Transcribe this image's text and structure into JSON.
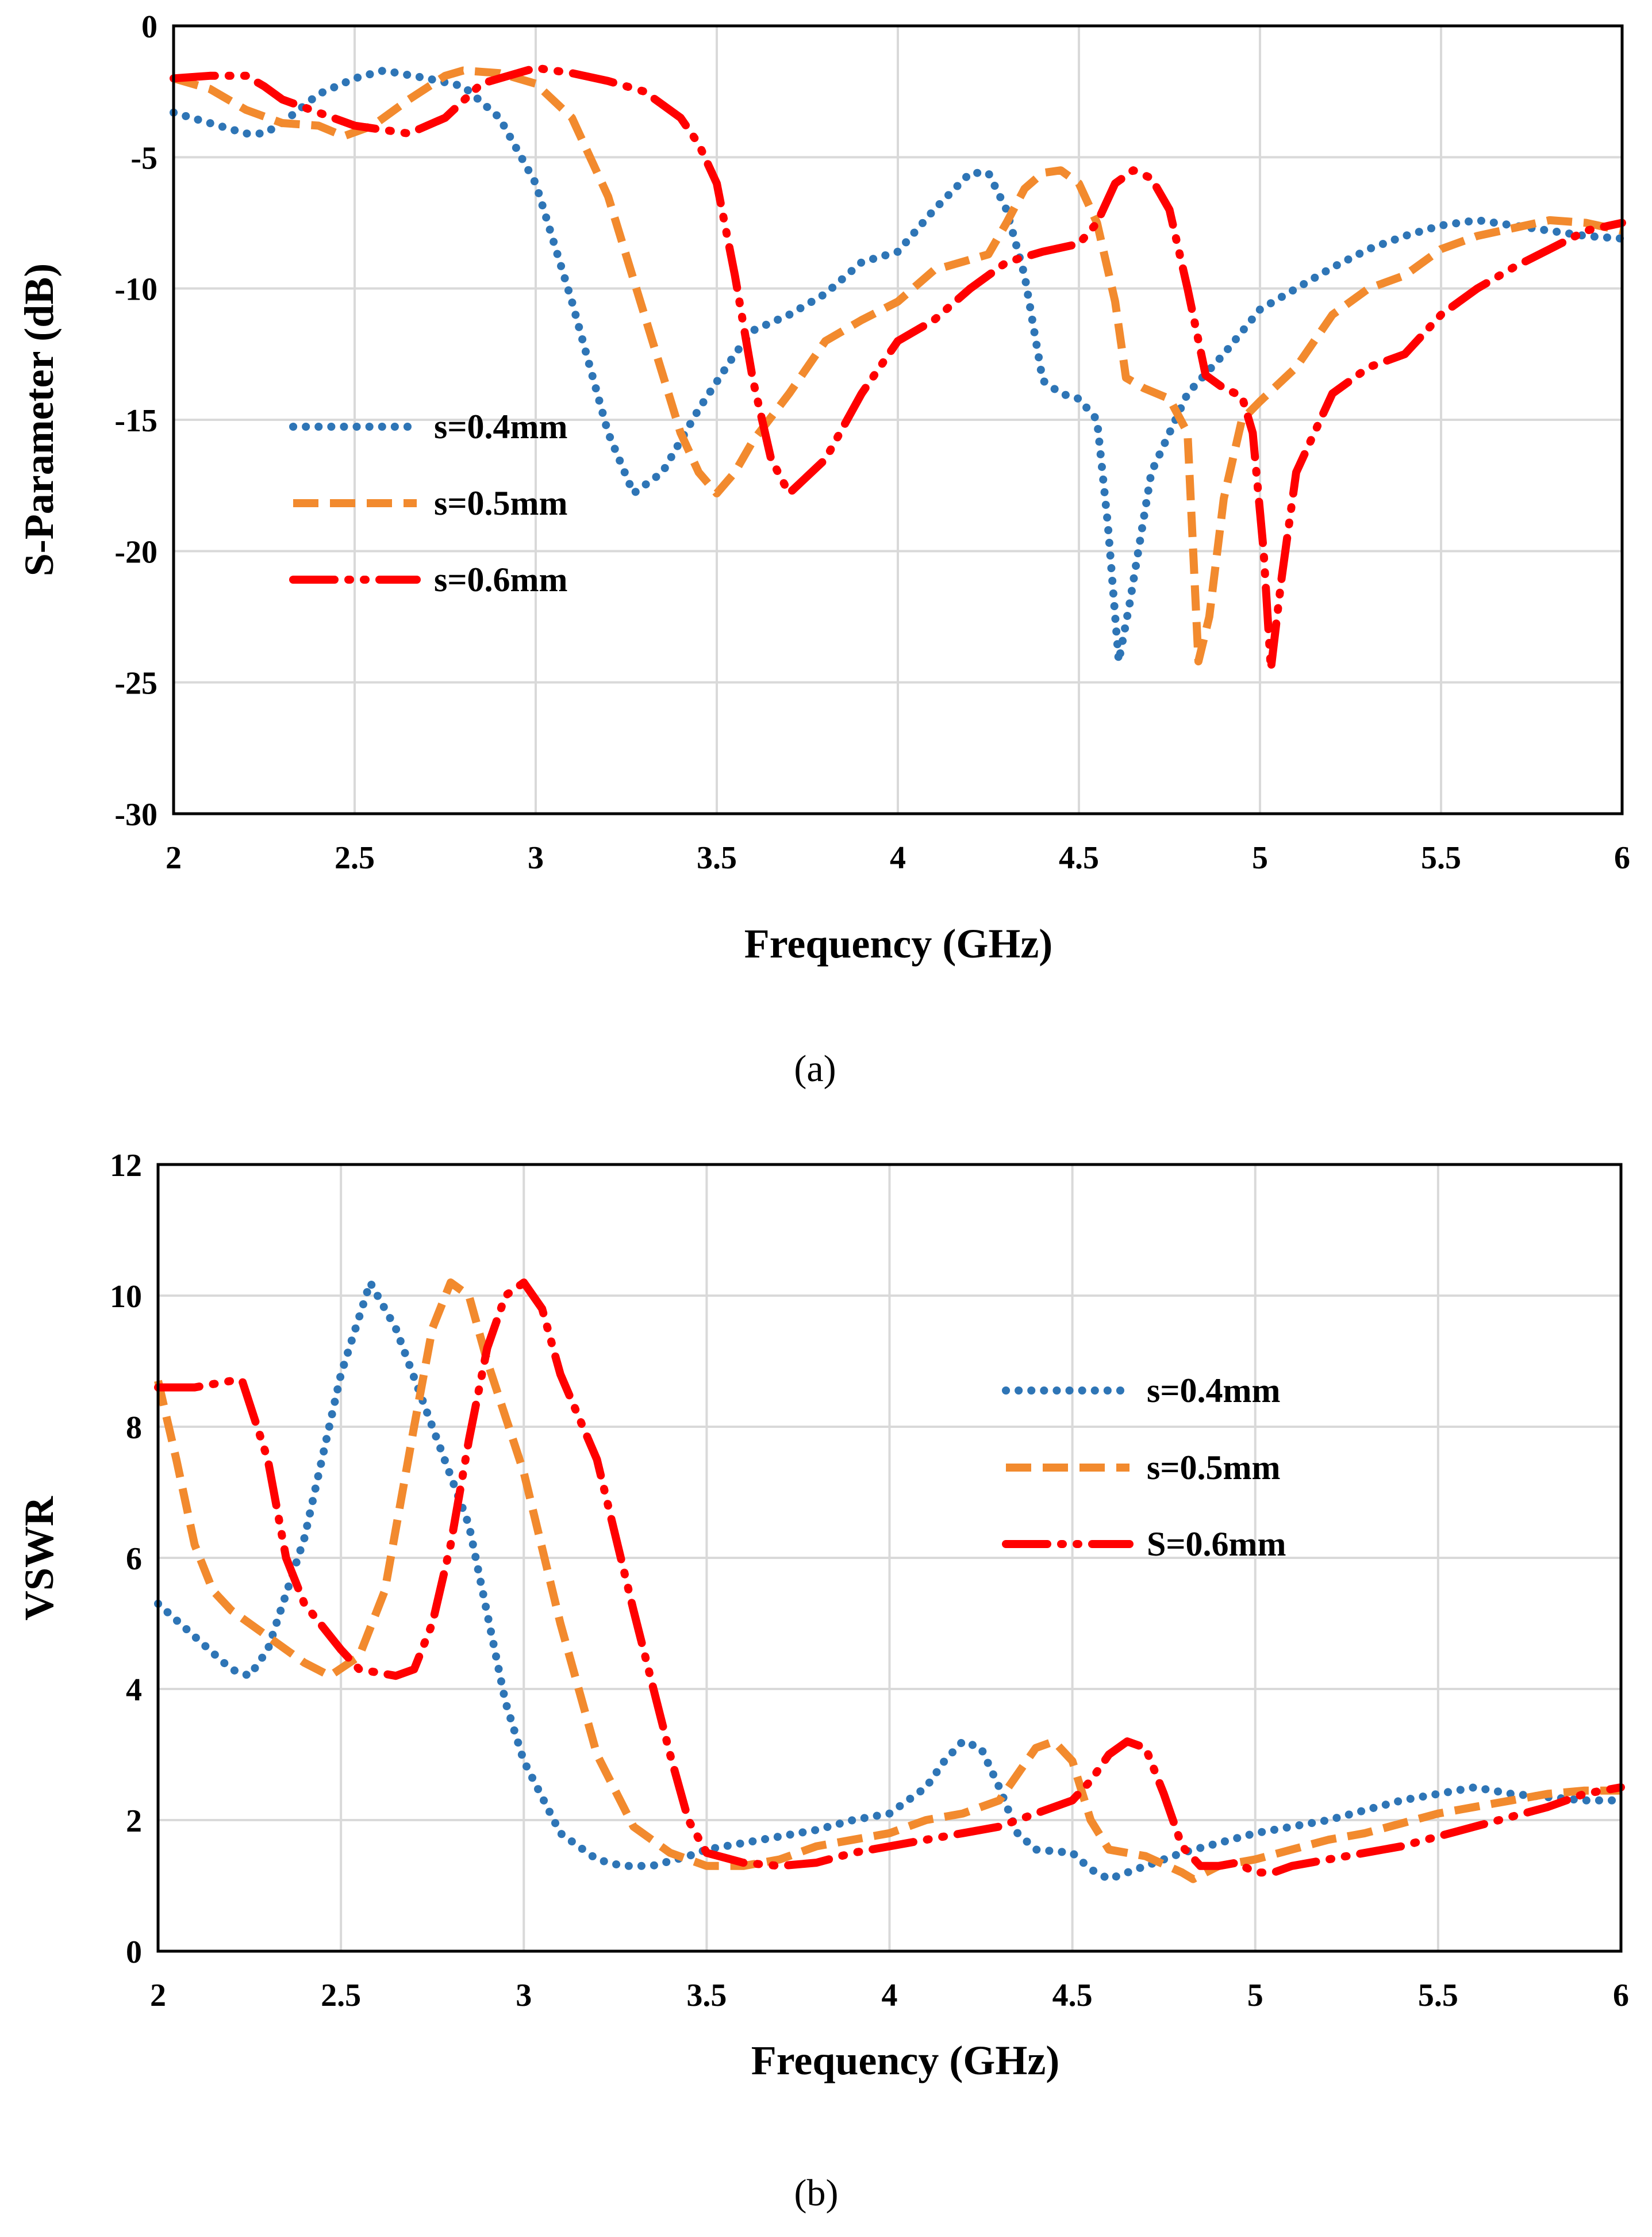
{
  "chart_data": [
    {
      "id": "a",
      "type": "line",
      "caption": "(a)",
      "xlabel": "Frequency (GHz)",
      "ylabel": "S-Parameter (dB)",
      "xlim": [
        2,
        6
      ],
      "ylim": [
        -30,
        0
      ],
      "xticks": [
        "2",
        "2.5",
        "3",
        "3.5",
        "4",
        "4.5",
        "5",
        "5.5",
        "6"
      ],
      "yticks": [
        "0",
        "-5",
        "-10",
        "-15",
        "-20",
        "-25",
        "-30"
      ],
      "grid": true,
      "legend_position": "center-left",
      "series": [
        {
          "name": "s=0.4mm",
          "color": "#2e75b6",
          "dash": "dotted",
          "x": [
            2.0,
            2.1,
            2.2,
            2.25,
            2.3,
            2.4,
            2.5,
            2.58,
            2.7,
            2.8,
            2.9,
            3.0,
            3.1,
            3.2,
            3.27,
            3.35,
            3.45,
            3.55,
            3.6,
            3.7,
            3.8,
            3.9,
            4.0,
            4.1,
            4.2,
            4.25,
            4.3,
            4.35,
            4.4,
            4.45,
            4.5,
            4.55,
            4.58,
            4.61,
            4.64,
            4.7,
            4.8,
            4.9,
            5.0,
            5.1,
            5.2,
            5.3,
            5.4,
            5.5,
            5.6,
            5.7,
            5.8,
            5.9,
            6.0
          ],
          "y": [
            -3.3,
            -3.7,
            -4.1,
            -4.1,
            -3.7,
            -2.6,
            -2.0,
            -1.7,
            -2.0,
            -2.3,
            -3.5,
            -6.0,
            -10.5,
            -15.5,
            -17.8,
            -17.0,
            -14.6,
            -12.5,
            -11.6,
            -11.0,
            -10.2,
            -9.0,
            -8.6,
            -7.0,
            -5.6,
            -5.6,
            -7.0,
            -9.5,
            -13.5,
            -14.0,
            -14.2,
            -15.0,
            -19.0,
            -24.2,
            -22.0,
            -17.0,
            -14.0,
            -12.5,
            -10.8,
            -10.0,
            -9.2,
            -8.5,
            -8.0,
            -7.6,
            -7.4,
            -7.6,
            -7.8,
            -8.0,
            -8.1
          ]
        },
        {
          "name": "s=0.5mm",
          "color": "#f28a2e",
          "dash": "dashed",
          "x": [
            2.0,
            2.1,
            2.2,
            2.3,
            2.4,
            2.47,
            2.55,
            2.65,
            2.75,
            2.8,
            2.9,
            3.0,
            3.1,
            3.2,
            3.3,
            3.4,
            3.45,
            3.5,
            3.55,
            3.6,
            3.7,
            3.8,
            3.9,
            4.0,
            4.1,
            4.2,
            4.25,
            4.3,
            4.35,
            4.4,
            4.45,
            4.5,
            4.55,
            4.6,
            4.63,
            4.68,
            4.75,
            4.8,
            4.83,
            4.86,
            4.9,
            4.95,
            5.0,
            5.1,
            5.2,
            5.3,
            5.4,
            5.5,
            5.6,
            5.7,
            5.8,
            5.9,
            6.0
          ],
          "y": [
            -2.0,
            -2.4,
            -3.2,
            -3.7,
            -3.8,
            -4.2,
            -3.8,
            -2.8,
            -1.9,
            -1.7,
            -1.8,
            -2.2,
            -3.5,
            -6.5,
            -11.0,
            -15.5,
            -17.0,
            -17.8,
            -17.0,
            -15.8,
            -14.0,
            -12.0,
            -11.2,
            -10.5,
            -9.3,
            -8.9,
            -8.7,
            -7.5,
            -6.2,
            -5.6,
            -5.5,
            -6.0,
            -7.5,
            -10.5,
            -13.4,
            -13.8,
            -14.2,
            -15.5,
            -24.2,
            -22.5,
            -18.0,
            -15.0,
            -14.3,
            -13.0,
            -11.0,
            -10.0,
            -9.5,
            -8.5,
            -8.0,
            -7.7,
            -7.4,
            -7.5,
            -7.8
          ]
        },
        {
          "name": "s=0.6mm",
          "color": "#ff0000",
          "dash": "dashdotdot",
          "x": [
            2.0,
            2.1,
            2.2,
            2.25,
            2.3,
            2.4,
            2.5,
            2.6,
            2.65,
            2.75,
            2.85,
            2.95,
            3.0,
            3.1,
            3.2,
            3.3,
            3.4,
            3.45,
            3.5,
            3.55,
            3.6,
            3.65,
            3.7,
            3.8,
            3.9,
            4.0,
            4.1,
            4.2,
            4.3,
            4.4,
            4.5,
            4.55,
            4.6,
            4.65,
            4.7,
            4.75,
            4.8,
            4.85,
            4.9,
            4.95,
            4.98,
            5.01,
            5.03,
            5.06,
            5.1,
            5.2,
            5.3,
            5.4,
            5.5,
            5.6,
            5.7,
            5.8,
            5.9,
            6.0
          ],
          "y": [
            -2.0,
            -1.9,
            -1.9,
            -2.3,
            -2.8,
            -3.3,
            -3.8,
            -4.0,
            -4.1,
            -3.5,
            -2.2,
            -1.8,
            -1.6,
            -1.8,
            -2.1,
            -2.5,
            -3.5,
            -4.5,
            -6.0,
            -9.5,
            -13.5,
            -16.5,
            -17.8,
            -16.5,
            -14.0,
            -12.0,
            -11.2,
            -10.0,
            -9.0,
            -8.6,
            -8.3,
            -7.5,
            -6.0,
            -5.5,
            -5.8,
            -7.0,
            -10.0,
            -13.3,
            -13.8,
            -14.1,
            -15.5,
            -20.0,
            -24.5,
            -21.0,
            -17.0,
            -14.0,
            -13.0,
            -12.5,
            -11.0,
            -10.0,
            -9.2,
            -8.5,
            -7.8,
            -7.5
          ]
        }
      ]
    },
    {
      "id": "b",
      "type": "line",
      "caption": "(b)",
      "xlabel": "Frequency (GHz)",
      "ylabel": "VSWR",
      "xlim": [
        2,
        6
      ],
      "ylim": [
        0,
        12
      ],
      "xticks": [
        "2",
        "2.5",
        "3",
        "3.5",
        "4",
        "4.5",
        "5",
        "5.5",
        "6"
      ],
      "yticks": [
        "0",
        "2",
        "4",
        "6",
        "8",
        "10",
        "12"
      ],
      "grid": true,
      "legend_position": "upper-right",
      "series": [
        {
          "name": "s=0.4mm",
          "color": "#2e75b6",
          "dash": "dotted",
          "x": [
            2.0,
            2.1,
            2.2,
            2.25,
            2.3,
            2.4,
            2.5,
            2.58,
            2.65,
            2.75,
            2.85,
            2.95,
            3.0,
            3.1,
            3.2,
            3.27,
            3.35,
            3.45,
            3.5,
            3.6,
            3.7,
            3.8,
            3.9,
            4.0,
            4.1,
            4.15,
            4.2,
            4.25,
            4.3,
            4.35,
            4.4,
            4.5,
            4.55,
            4.6,
            4.7,
            4.8,
            4.9,
            5.0,
            5.1,
            5.2,
            5.3,
            5.4,
            5.5,
            5.6,
            5.7,
            5.8,
            5.9,
            6.0
          ],
          "y": [
            5.3,
            4.8,
            4.3,
            4.2,
            4.6,
            6.3,
            8.8,
            10.2,
            9.5,
            8.0,
            6.5,
            3.8,
            2.9,
            1.8,
            1.4,
            1.3,
            1.3,
            1.45,
            1.55,
            1.65,
            1.75,
            1.85,
            2.0,
            2.1,
            2.5,
            2.9,
            3.2,
            3.1,
            2.5,
            1.8,
            1.55,
            1.5,
            1.25,
            1.1,
            1.3,
            1.5,
            1.65,
            1.8,
            1.9,
            2.0,
            2.15,
            2.3,
            2.4,
            2.5,
            2.4,
            2.35,
            2.3,
            2.3
          ]
        },
        {
          "name": "s=0.5mm",
          "color": "#f28a2e",
          "dash": "dashed",
          "x": [
            2.0,
            2.05,
            2.1,
            2.15,
            2.2,
            2.3,
            2.4,
            2.47,
            2.55,
            2.62,
            2.7,
            2.75,
            2.8,
            2.85,
            2.9,
            3.0,
            3.1,
            3.2,
            3.3,
            3.4,
            3.5,
            3.6,
            3.7,
            3.8,
            3.9,
            4.0,
            4.1,
            4.2,
            4.3,
            4.35,
            4.4,
            4.45,
            4.5,
            4.55,
            4.6,
            4.7,
            4.8,
            4.83,
            4.9,
            5.0,
            5.1,
            5.2,
            5.3,
            5.4,
            5.5,
            5.6,
            5.7,
            5.8,
            5.9,
            6.0
          ],
          "y": [
            8.7,
            7.5,
            6.2,
            5.5,
            5.2,
            4.8,
            4.4,
            4.2,
            4.5,
            5.5,
            8.0,
            9.5,
            10.2,
            10.0,
            9.0,
            7.3,
            5.0,
            3.0,
            1.9,
            1.5,
            1.3,
            1.3,
            1.4,
            1.6,
            1.7,
            1.8,
            2.0,
            2.1,
            2.3,
            2.7,
            3.1,
            3.2,
            2.9,
            2.0,
            1.55,
            1.45,
            1.2,
            1.1,
            1.3,
            1.4,
            1.55,
            1.7,
            1.8,
            1.95,
            2.1,
            2.2,
            2.3,
            2.4,
            2.45,
            2.45
          ]
        },
        {
          "name": "S=0.6mm",
          "color": "#ff0000",
          "dash": "dashdotdot",
          "x": [
            2.0,
            2.1,
            2.2,
            2.23,
            2.3,
            2.35,
            2.4,
            2.5,
            2.55,
            2.65,
            2.7,
            2.75,
            2.8,
            2.85,
            2.9,
            2.95,
            3.0,
            3.05,
            3.1,
            3.2,
            3.3,
            3.4,
            3.45,
            3.5,
            3.6,
            3.7,
            3.8,
            3.9,
            4.0,
            4.1,
            4.2,
            4.3,
            4.4,
            4.5,
            4.55,
            4.6,
            4.65,
            4.7,
            4.75,
            4.8,
            4.85,
            4.9,
            4.95,
            5.0,
            5.05,
            5.1,
            5.2,
            5.3,
            5.4,
            5.5,
            5.6,
            5.7,
            5.8,
            5.9,
            6.0
          ],
          "y": [
            8.6,
            8.6,
            8.7,
            8.7,
            7.5,
            6.0,
            5.3,
            4.6,
            4.3,
            4.2,
            4.3,
            5.0,
            6.2,
            7.8,
            9.2,
            10.0,
            10.2,
            9.8,
            8.8,
            7.5,
            5.2,
            3.0,
            2.0,
            1.5,
            1.35,
            1.3,
            1.35,
            1.5,
            1.6,
            1.7,
            1.8,
            1.9,
            2.1,
            2.3,
            2.6,
            3.0,
            3.2,
            3.1,
            2.4,
            1.6,
            1.3,
            1.3,
            1.35,
            1.2,
            1.2,
            1.3,
            1.4,
            1.5,
            1.6,
            1.75,
            1.9,
            2.05,
            2.2,
            2.4,
            2.5
          ]
        }
      ]
    }
  ]
}
